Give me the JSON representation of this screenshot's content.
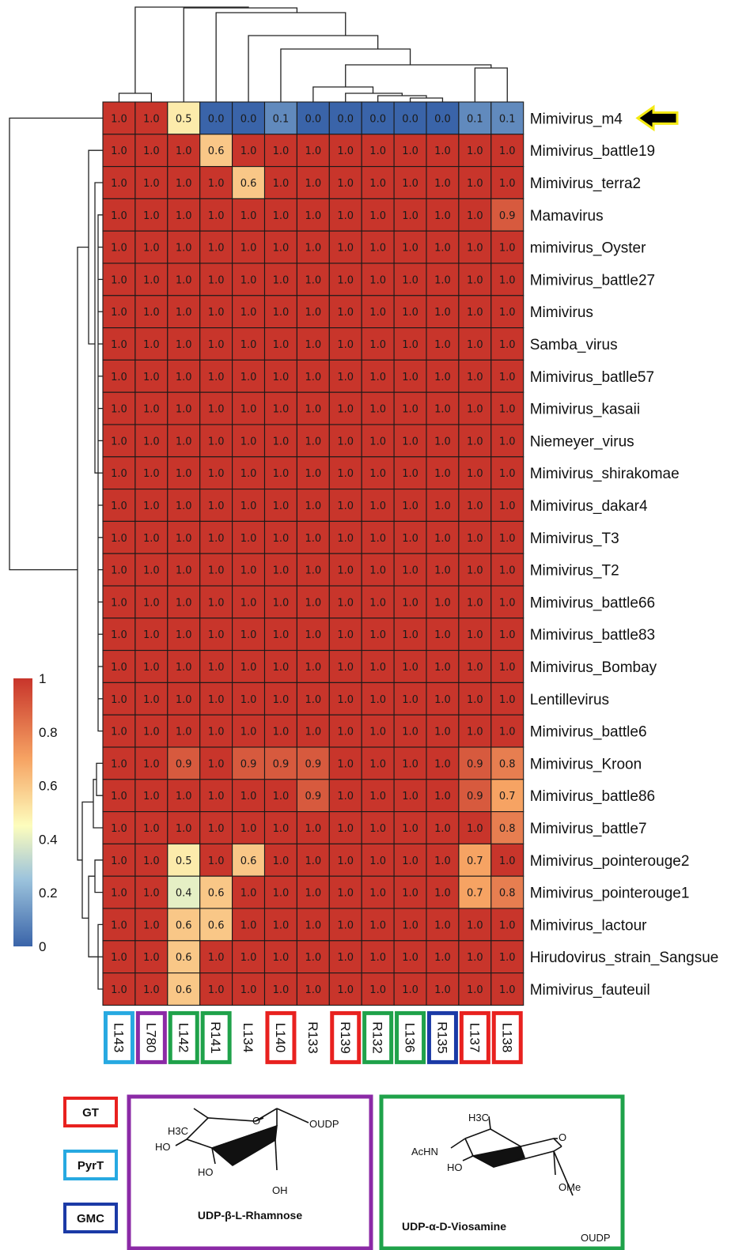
{
  "chart_data": {
    "type": "heatmap",
    "columns": [
      "L143",
      "L780",
      "L142",
      "R141",
      "L134",
      "L140",
      "R133",
      "R139",
      "R132",
      "L136",
      "R135",
      "L137",
      "L138"
    ],
    "column_groups": {
      "L143": "PyrT",
      "L780": "rhamnose",
      "L142": "viosamine",
      "R141": "viosamine",
      "L134": "",
      "L140": "GT",
      "R133": "",
      "R139": "GT",
      "R132": "viosamine",
      "L136": "viosamine",
      "R135": "GMC",
      "L137": "GT",
      "L138": "GT"
    },
    "rows": [
      "Mimivirus_m4",
      "Mimivirus_battle19",
      "Mimivirus_terra2",
      "Mamavirus",
      "mimivirus_Oyster",
      "Mimivirus_battle27",
      "Mimivirus",
      "Samba_virus",
      "Mimivirus_batlle57",
      "Mimivirus_kasaii",
      "Niemeyer_virus",
      "Mimivirus_shirakomae",
      "Mimivirus_dakar4",
      "Mimivirus_T3",
      "Mimivirus_T2",
      "Mimivirus_battle66",
      "Mimivirus_battle83",
      "Mimivirus_Bombay",
      "Lentillevirus",
      "Mimivirus_battle6",
      "Mimivirus_Kroon",
      "Mimivirus_battle86",
      "Mimivirus_battle7",
      "Mimivirus_pointerouge2",
      "Mimivirus_pointerouge1",
      "Mimivirus_lactour",
      "Hirudovirus_strain_Sangsue",
      "Mimivirus_fauteuil"
    ],
    "values": [
      [
        1.0,
        1.0,
        0.5,
        0.0,
        0.0,
        0.1,
        0.0,
        0.0,
        0.0,
        0.0,
        0.0,
        0.1,
        0.1
      ],
      [
        1.0,
        1.0,
        1.0,
        0.6,
        1.0,
        1.0,
        1.0,
        1.0,
        1.0,
        1.0,
        1.0,
        1.0,
        1.0
      ],
      [
        1.0,
        1.0,
        1.0,
        1.0,
        0.6,
        1.0,
        1.0,
        1.0,
        1.0,
        1.0,
        1.0,
        1.0,
        1.0
      ],
      [
        1.0,
        1.0,
        1.0,
        1.0,
        1.0,
        1.0,
        1.0,
        1.0,
        1.0,
        1.0,
        1.0,
        1.0,
        0.9
      ],
      [
        1.0,
        1.0,
        1.0,
        1.0,
        1.0,
        1.0,
        1.0,
        1.0,
        1.0,
        1.0,
        1.0,
        1.0,
        1.0
      ],
      [
        1.0,
        1.0,
        1.0,
        1.0,
        1.0,
        1.0,
        1.0,
        1.0,
        1.0,
        1.0,
        1.0,
        1.0,
        1.0
      ],
      [
        1.0,
        1.0,
        1.0,
        1.0,
        1.0,
        1.0,
        1.0,
        1.0,
        1.0,
        1.0,
        1.0,
        1.0,
        1.0
      ],
      [
        1.0,
        1.0,
        1.0,
        1.0,
        1.0,
        1.0,
        1.0,
        1.0,
        1.0,
        1.0,
        1.0,
        1.0,
        1.0
      ],
      [
        1.0,
        1.0,
        1.0,
        1.0,
        1.0,
        1.0,
        1.0,
        1.0,
        1.0,
        1.0,
        1.0,
        1.0,
        1.0
      ],
      [
        1.0,
        1.0,
        1.0,
        1.0,
        1.0,
        1.0,
        1.0,
        1.0,
        1.0,
        1.0,
        1.0,
        1.0,
        1.0
      ],
      [
        1.0,
        1.0,
        1.0,
        1.0,
        1.0,
        1.0,
        1.0,
        1.0,
        1.0,
        1.0,
        1.0,
        1.0,
        1.0
      ],
      [
        1.0,
        1.0,
        1.0,
        1.0,
        1.0,
        1.0,
        1.0,
        1.0,
        1.0,
        1.0,
        1.0,
        1.0,
        1.0
      ],
      [
        1.0,
        1.0,
        1.0,
        1.0,
        1.0,
        1.0,
        1.0,
        1.0,
        1.0,
        1.0,
        1.0,
        1.0,
        1.0
      ],
      [
        1.0,
        1.0,
        1.0,
        1.0,
        1.0,
        1.0,
        1.0,
        1.0,
        1.0,
        1.0,
        1.0,
        1.0,
        1.0
      ],
      [
        1.0,
        1.0,
        1.0,
        1.0,
        1.0,
        1.0,
        1.0,
        1.0,
        1.0,
        1.0,
        1.0,
        1.0,
        1.0
      ],
      [
        1.0,
        1.0,
        1.0,
        1.0,
        1.0,
        1.0,
        1.0,
        1.0,
        1.0,
        1.0,
        1.0,
        1.0,
        1.0
      ],
      [
        1.0,
        1.0,
        1.0,
        1.0,
        1.0,
        1.0,
        1.0,
        1.0,
        1.0,
        1.0,
        1.0,
        1.0,
        1.0
      ],
      [
        1.0,
        1.0,
        1.0,
        1.0,
        1.0,
        1.0,
        1.0,
        1.0,
        1.0,
        1.0,
        1.0,
        1.0,
        1.0
      ],
      [
        1.0,
        1.0,
        1.0,
        1.0,
        1.0,
        1.0,
        1.0,
        1.0,
        1.0,
        1.0,
        1.0,
        1.0,
        1.0
      ],
      [
        1.0,
        1.0,
        1.0,
        1.0,
        1.0,
        1.0,
        1.0,
        1.0,
        1.0,
        1.0,
        1.0,
        1.0,
        1.0
      ],
      [
        1.0,
        1.0,
        0.9,
        1.0,
        0.9,
        0.9,
        0.9,
        1.0,
        1.0,
        1.0,
        1.0,
        0.9,
        0.8
      ],
      [
        1.0,
        1.0,
        1.0,
        1.0,
        1.0,
        1.0,
        0.9,
        1.0,
        1.0,
        1.0,
        1.0,
        0.9,
        0.7
      ],
      [
        1.0,
        1.0,
        1.0,
        1.0,
        1.0,
        1.0,
        1.0,
        1.0,
        1.0,
        1.0,
        1.0,
        1.0,
        0.8
      ],
      [
        1.0,
        1.0,
        0.5,
        1.0,
        0.6,
        1.0,
        1.0,
        1.0,
        1.0,
        1.0,
        1.0,
        0.7,
        1.0
      ],
      [
        1.0,
        1.0,
        0.4,
        0.6,
        1.0,
        1.0,
        1.0,
        1.0,
        1.0,
        1.0,
        1.0,
        0.7,
        0.8
      ],
      [
        1.0,
        1.0,
        0.6,
        0.6,
        1.0,
        1.0,
        1.0,
        1.0,
        1.0,
        1.0,
        1.0,
        1.0,
        1.0
      ],
      [
        1.0,
        1.0,
        0.6,
        1.0,
        1.0,
        1.0,
        1.0,
        1.0,
        1.0,
        1.0,
        1.0,
        1.0,
        1.0
      ],
      [
        1.0,
        1.0,
        0.6,
        1.0,
        1.0,
        1.0,
        1.0,
        1.0,
        1.0,
        1.0,
        1.0,
        1.0,
        1.0
      ]
    ],
    "highlighted_row": "Mimivirus_m4",
    "colorbar": {
      "range": [
        0,
        1
      ],
      "ticks": [
        "1",
        "0.8",
        "0.6",
        "0.4",
        "0.2",
        "0"
      ],
      "colors": {
        "low": "#3a64a9",
        "mid": "#fdfdbd",
        "high": "#c8352b"
      }
    },
    "dendrogram": "hierarchical clustering trees on rows (left) and columns (top)"
  },
  "legend": {
    "items": [
      {
        "label": "GT",
        "color": "#e8211f"
      },
      {
        "label": "PyrT",
        "color": "#27a9e1"
      },
      {
        "label": "GMC",
        "color": "#1b3aa6"
      }
    ]
  },
  "structures": {
    "rhamnose": {
      "title": "UDP-β-L-Rhamnose",
      "color": "#8b2aa6",
      "atoms": {
        "h3c": "H3C",
        "ho1": "HO",
        "ho2": "HO",
        "oh": "OH",
        "o": "O",
        "oudp": "OUDP"
      }
    },
    "viosamine": {
      "title": "UDP-α-D-Viosamine",
      "color": "#1fa24a",
      "atoms": {
        "h3c": "H3C",
        "achn": "AcHN",
        "ho": "HO",
        "o": "O",
        "ome": "OMe",
        "oudp": "OUDP"
      }
    }
  },
  "group_colors": {
    "GT": "#e8211f",
    "PyrT": "#27a9e1",
    "GMC": "#1b3aa6",
    "rhamnose": "#8b2aa6",
    "viosamine": "#1fa24a",
    "arrow_fill": "#000000",
    "arrow_outline": "#f5ea14"
  }
}
